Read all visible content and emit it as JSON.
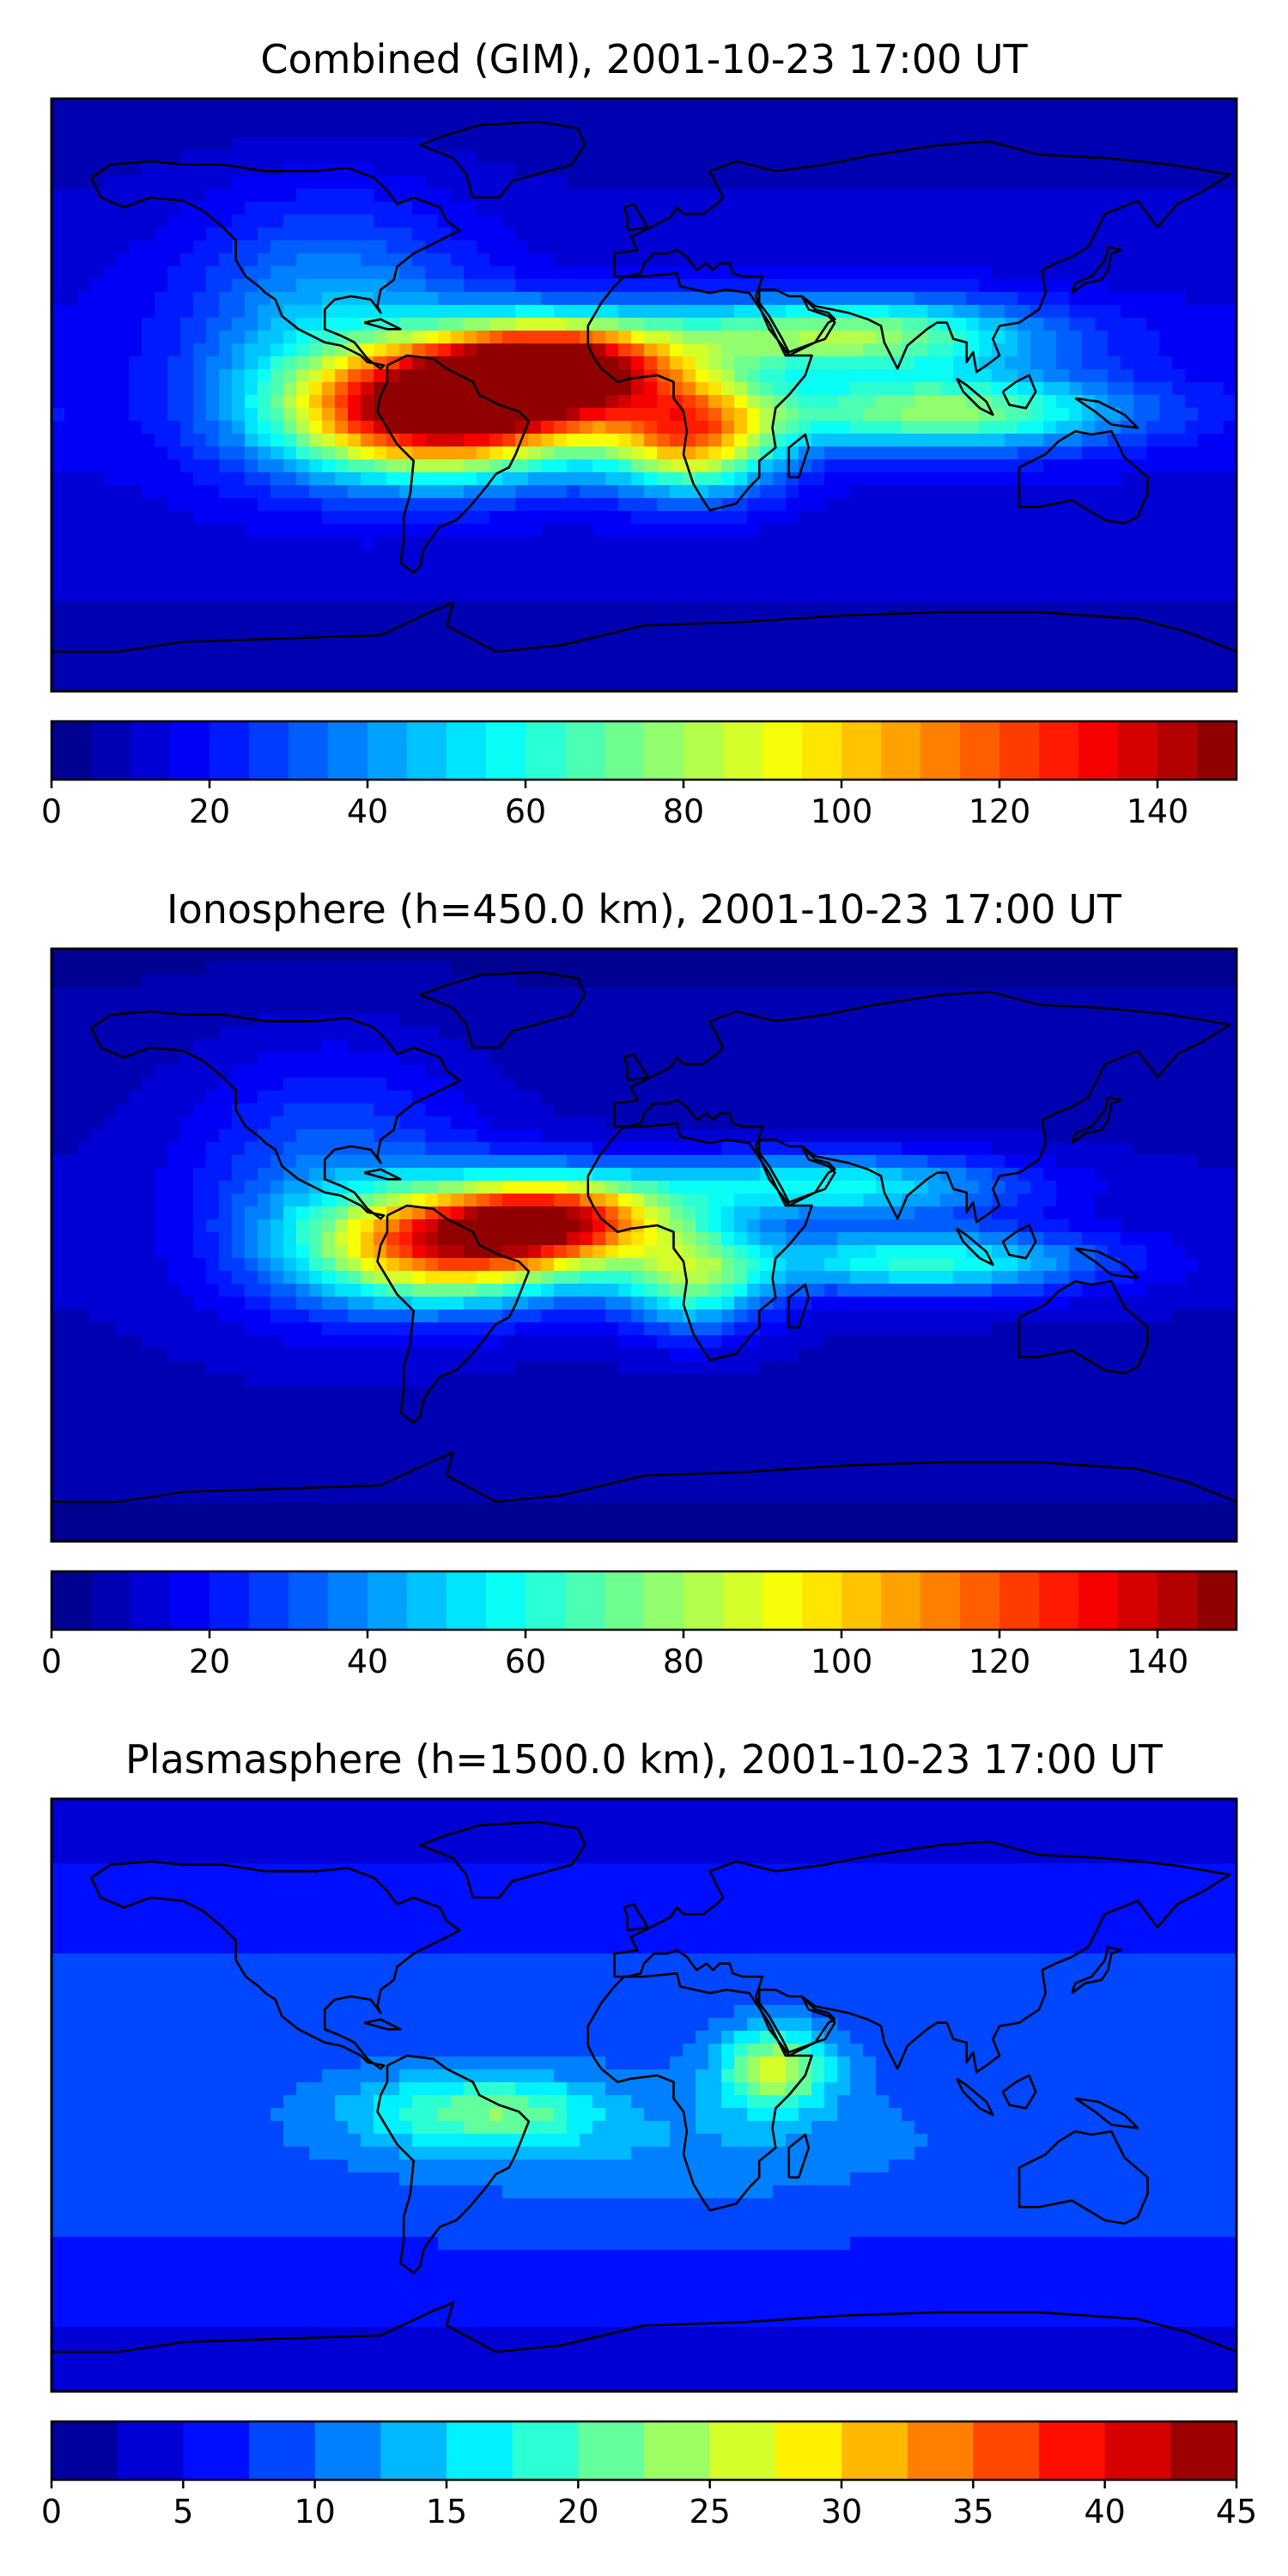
{
  "chart_data": [
    {
      "type": "heatmap",
      "title": "Combined (GIM), 2001-10-23 17:00 UT",
      "colormap": "jet",
      "levels": [
        0,
        5,
        10,
        15,
        20,
        25,
        30,
        35,
        40,
        45,
        50,
        55,
        60,
        65,
        70,
        75,
        80,
        85,
        90,
        95,
        100,
        105,
        110,
        115,
        120,
        125,
        130,
        135,
        140,
        145,
        150
      ],
      "colorbar_ticks": [
        0,
        20,
        40,
        60,
        80,
        100,
        120,
        140
      ],
      "colorbar_range": [
        0,
        150
      ],
      "x_range_deg_lon": [
        -180,
        180
      ],
      "y_range_deg_lat": [
        -90,
        90
      ],
      "field_peaks": [
        {
          "lon": -60,
          "lat": -5,
          "value": 145,
          "sx": 32,
          "sy": 13
        },
        {
          "lon": -28,
          "lat": 8,
          "value": 138,
          "sx": 26,
          "sy": 10
        },
        {
          "lon": 15,
          "lat": -12,
          "value": 100,
          "sx": 18,
          "sy": 12
        },
        {
          "lon": 60,
          "lat": 18,
          "value": 75,
          "sx": 42,
          "sy": 8
        },
        {
          "lon": 90,
          "lat": -5,
          "value": 72,
          "sx": 40,
          "sy": 8
        },
        {
          "lon": -95,
          "lat": 20,
          "value": 40,
          "sx": 30,
          "sy": 28
        }
      ],
      "field_background": 15,
      "coastlines": true
    },
    {
      "type": "heatmap",
      "title": "Ionosphere  (h=450.0 km), 2001-10-23 17:00 UT",
      "colormap": "jet",
      "levels": [
        0,
        5,
        10,
        15,
        20,
        25,
        30,
        35,
        40,
        45,
        50,
        55,
        60,
        65,
        70,
        75,
        80,
        85,
        90,
        95,
        100,
        105,
        110,
        115,
        120,
        125,
        130,
        135,
        140,
        145,
        150
      ],
      "colorbar_ticks": [
        0,
        20,
        40,
        60,
        80,
        100,
        120,
        140
      ],
      "colorbar_range": [
        0,
        150
      ],
      "x_range_deg_lon": [
        -180,
        180
      ],
      "y_range_deg_lat": [
        -90,
        90
      ],
      "field_peaks": [
        {
          "lon": -58,
          "lat": 0,
          "value": 112,
          "sx": 30,
          "sy": 12
        },
        {
          "lon": -25,
          "lat": 8,
          "value": 100,
          "sx": 24,
          "sy": 9
        },
        {
          "lon": 15,
          "lat": -10,
          "value": 65,
          "sx": 16,
          "sy": 11
        },
        {
          "lon": 55,
          "lat": 18,
          "value": 55,
          "sx": 40,
          "sy": 7
        },
        {
          "lon": 85,
          "lat": -5,
          "value": 58,
          "sx": 38,
          "sy": 7
        },
        {
          "lon": -95,
          "lat": 20,
          "value": 30,
          "sx": 30,
          "sy": 28
        }
      ],
      "field_background": 10,
      "coastlines": true
    },
    {
      "type": "heatmap",
      "title": "Plasmasphere (h=1500.0 km), 2001-10-23 17:00 UT",
      "colormap": "jet",
      "levels": [
        0,
        2.5,
        5,
        7.5,
        10,
        12.5,
        15,
        17.5,
        20,
        22.5,
        25,
        27.5,
        30,
        32.5,
        35,
        37.5,
        40,
        42.5,
        45
      ],
      "colorbar_ticks": [
        0,
        5,
        10,
        15,
        20,
        25,
        30,
        35,
        40,
        45
      ],
      "colorbar_range": [
        0,
        45
      ],
      "x_range_deg_lon": [
        -180,
        180
      ],
      "y_range_deg_lat": [
        -90,
        90
      ],
      "field_peaks": [
        {
          "lon": 40,
          "lat": 8,
          "value": 22,
          "sx": 12,
          "sy": 9
        },
        {
          "lon": -60,
          "lat": -5,
          "value": 14,
          "sx": 22,
          "sy": 8
        },
        {
          "lon": -35,
          "lat": -5,
          "value": 11,
          "sx": 16,
          "sy": 7
        },
        {
          "lon": 0,
          "lat": -15,
          "value": 9,
          "sx": 60,
          "sy": 14
        },
        {
          "lon": 100,
          "lat": 0,
          "value": 5,
          "sx": 40,
          "sy": 10
        }
      ],
      "field_background": 9,
      "coastlines": true
    }
  ]
}
